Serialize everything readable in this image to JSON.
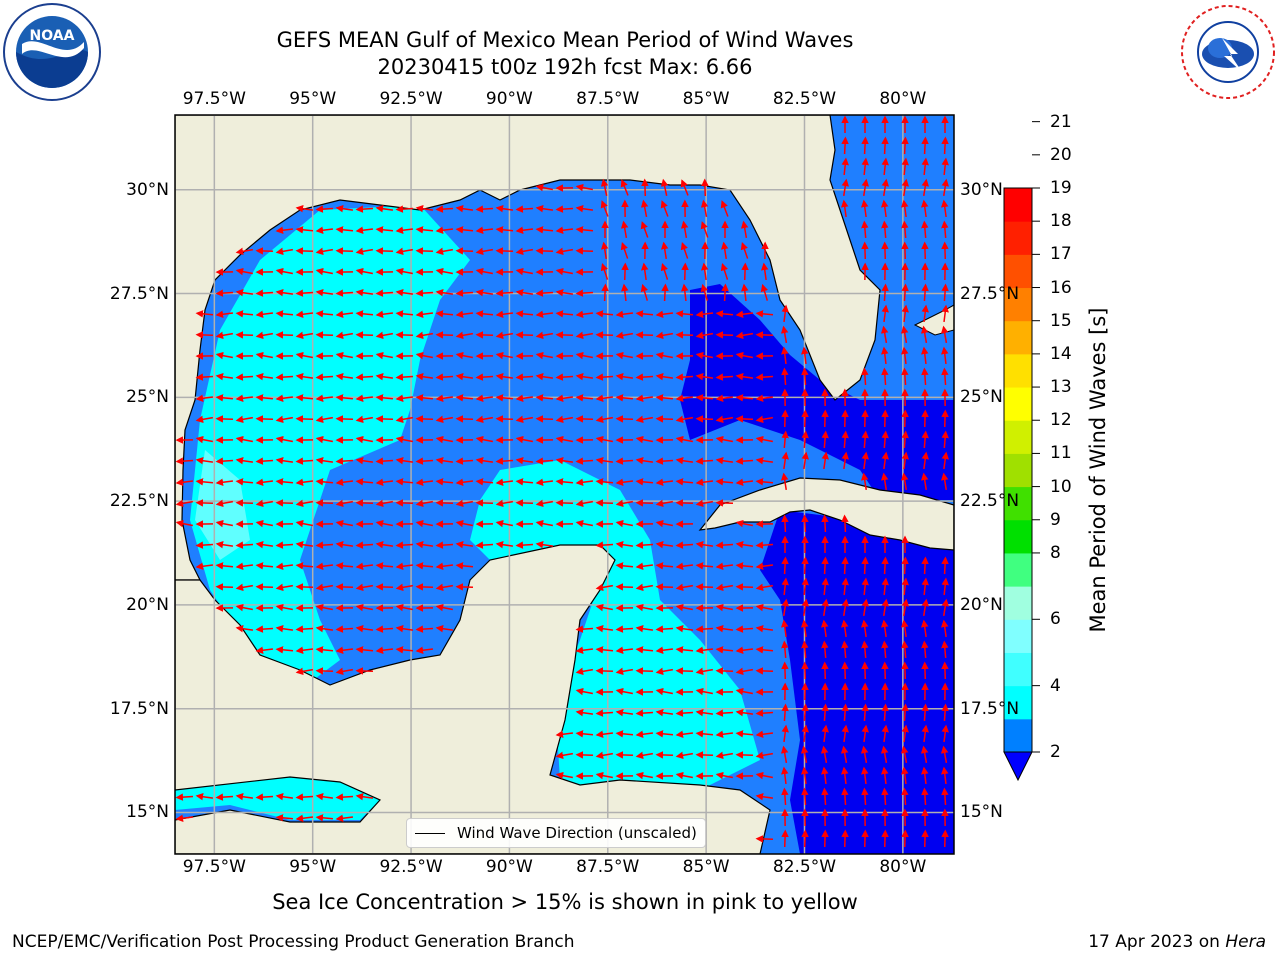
{
  "title": {
    "line1": "GEFS MEAN Gulf of Mexico Mean Period of Wind Waves",
    "line2": "20230415 t00z 192h fcst   Max: 6.66"
  },
  "map": {
    "lon_range": [
      -98.5,
      -78.7
    ],
    "lat_range": [
      14.0,
      31.8
    ],
    "lon_ticks": [
      "97.5°W",
      "95°W",
      "92.5°W",
      "90°W",
      "87.5°W",
      "85°W",
      "82.5°W",
      "80°W"
    ],
    "lon_tick_values": [
      -97.5,
      -95,
      -92.5,
      -90,
      -87.5,
      -85,
      -82.5,
      -80
    ],
    "lat_ticks": [
      "30°N",
      "27.5°N",
      "25°N",
      "22.5°N",
      "20°N",
      "17.5°N",
      "15°N"
    ],
    "lat_tick_values": [
      30,
      27.5,
      25,
      22.5,
      20,
      17.5,
      15
    ],
    "gridlines": true,
    "land_color": "#efeedb",
    "ocean_color": "#1f7fff"
  },
  "legend": {
    "label": "Wind Wave Direction (unscaled)"
  },
  "colorbar": {
    "label": "Mean Period of Wind Waves [s]",
    "ticks": [
      "21",
      "20",
      "19",
      "18",
      "17",
      "16",
      "15",
      "14",
      "13",
      "12",
      "11",
      "10",
      "9",
      "8",
      "6",
      "4",
      "2"
    ],
    "tick_values": [
      21,
      20,
      19,
      18,
      17,
      16,
      15,
      14,
      13,
      12,
      11,
      10,
      9,
      8,
      6,
      4,
      2
    ],
    "colors": [
      "#0000ff",
      "#0080ff",
      "#00ffff",
      "#40ffff",
      "#80ffff",
      "#a0ffe0",
      "#40ff80",
      "#00e000",
      "#40e000",
      "#a0e000",
      "#d0f000",
      "#ffff00",
      "#ffe000",
      "#ffb000",
      "#ff8000",
      "#ff5000",
      "#ff2000",
      "#ff0000"
    ],
    "extend": "min"
  },
  "note": "Sea Ice Concentration > 15% is shown in pink to yellow",
  "footer": {
    "left": "NCEP/EMC/Verification Post Processing Product Generation Branch",
    "date": "17 Apr 2023 on",
    "host": "Hera"
  },
  "logos": {
    "left_icon": "noaa-logo",
    "right_icon": "national-weather-service-logo"
  }
}
